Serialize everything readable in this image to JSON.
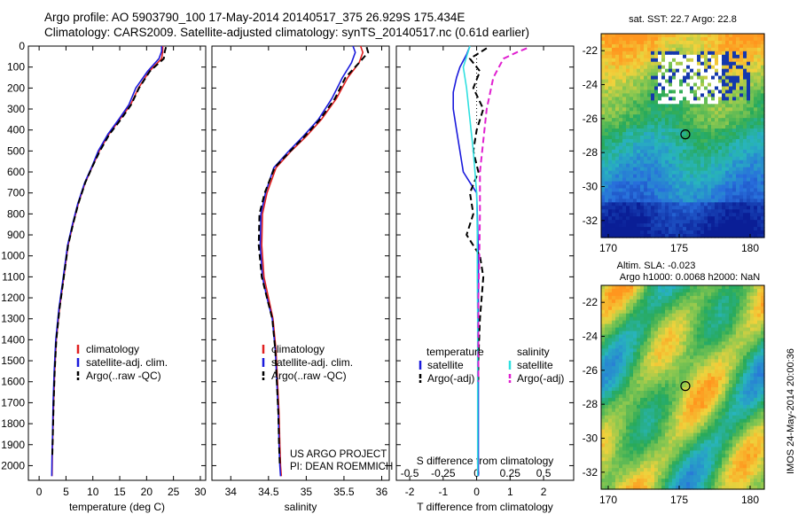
{
  "header": {
    "line1": "Argo profile: AO 5903790_100 17-May-2014 20140517_375 26.929S 175.434E",
    "line2": "Climatology: CARS2009. Satellite-adjusted climatology: synTS_20140517.nc (0.61d earlier)"
  },
  "footer_stamp": "IMOS 24-May-2014 20:00:36",
  "project_note": {
    "line1": "US ARGO PROJECT",
    "line2": "PI: DEAN ROEMMICH"
  },
  "colors": {
    "climatology": "#e02020",
    "satellite": "#1a1adc",
    "argo": "#000000",
    "sat_cyan": "#30e0e0",
    "argo_magenta": "#e020d0"
  },
  "chart_data": [
    {
      "type": "line",
      "xlabel": "temperature (deg C)",
      "ylabel": "",
      "xlim": [
        -2,
        31
      ],
      "ylim": [
        2070,
        0
      ],
      "xticks": [
        0,
        5,
        10,
        15,
        20,
        25,
        30
      ],
      "yticks": [
        0,
        100,
        200,
        300,
        400,
        500,
        600,
        700,
        800,
        900,
        1000,
        1100,
        1200,
        1300,
        1400,
        1500,
        1600,
        1700,
        1800,
        1900,
        2000
      ],
      "legend": [
        "climatology",
        "satellite-adj. clim.",
        "Argo(..raw -QC)"
      ],
      "legend_position": "bottom-center",
      "series": [
        {
          "name": "climatology",
          "color": "#e02020",
          "style": "solid",
          "x": [
            23.0,
            23.0,
            22.8,
            20.5,
            18.5,
            17.0,
            15.0,
            13.0,
            11.2,
            10.0,
            8.6,
            7.3,
            6.3,
            5.4,
            4.6,
            3.8,
            3.2,
            2.9,
            2.7,
            2.55,
            2.45,
            2.4
          ],
          "y": [
            0,
            25,
            60,
            120,
            200,
            280,
            350,
            420,
            500,
            570,
            650,
            750,
            850,
            950,
            1100,
            1250,
            1400,
            1550,
            1700,
            1850,
            1950,
            2050
          ]
        },
        {
          "name": "satellite-adj. clim.",
          "color": "#1a1adc",
          "style": "solid",
          "x": [
            22.8,
            22.8,
            22.3,
            20.2,
            18.0,
            16.7,
            14.8,
            12.8,
            11.0,
            9.9,
            8.5,
            7.2,
            6.2,
            5.3,
            4.5,
            3.7,
            3.1,
            2.8,
            2.6,
            2.5,
            2.4,
            2.35
          ],
          "y": [
            0,
            25,
            60,
            120,
            200,
            280,
            350,
            420,
            500,
            570,
            650,
            750,
            850,
            950,
            1100,
            1250,
            1400,
            1550,
            1700,
            1850,
            1950,
            2050
          ]
        },
        {
          "name": "Argo(..raw -QC)",
          "color": "#000000",
          "style": "dashed",
          "x": [
            23.6,
            23.4,
            23.2,
            20.6,
            18.6,
            17.1,
            15.2,
            13.1,
            11.3,
            10.0,
            8.6,
            7.3,
            6.3,
            5.4,
            4.6,
            3.8,
            3.2,
            2.9,
            2.7,
            2.55,
            2.45
          ],
          "y": [
            5,
            25,
            60,
            120,
            200,
            280,
            350,
            420,
            500,
            570,
            650,
            750,
            850,
            950,
            1100,
            1250,
            1400,
            1550,
            1700,
            1850,
            1950
          ]
        }
      ]
    },
    {
      "type": "line",
      "xlabel": "salinity",
      "ylabel": "",
      "xlim": [
        33.75,
        36.1
      ],
      "ylim": [
        2070,
        0
      ],
      "xticks": [
        34,
        34.5,
        35,
        35.5,
        36
      ],
      "xticklabels": [
        "34",
        "34.5",
        "35",
        "35.5",
        "36"
      ],
      "legend": [
        "climatology",
        "satellite-adj. clim.",
        "Argo(..raw -QC)"
      ],
      "legend_position": "bottom-center",
      "series": [
        {
          "name": "climatology",
          "color": "#e02020",
          "style": "solid",
          "x": [
            35.72,
            35.75,
            35.7,
            35.55,
            35.4,
            35.2,
            35.0,
            34.8,
            34.6,
            34.48,
            34.42,
            34.41,
            34.44,
            34.5,
            34.56,
            34.6,
            34.62,
            34.64,
            34.65,
            34.66,
            34.67
          ],
          "y": [
            0,
            30,
            80,
            150,
            250,
            350,
            430,
            500,
            580,
            700,
            800,
            950,
            1100,
            1200,
            1300,
            1450,
            1600,
            1750,
            1900,
            2000,
            2050
          ]
        },
        {
          "name": "satellite-adj. clim.",
          "color": "#1a1adc",
          "style": "solid",
          "x": [
            35.62,
            35.65,
            35.6,
            35.48,
            35.34,
            35.16,
            34.96,
            34.77,
            34.57,
            34.46,
            34.4,
            34.39,
            34.42,
            34.48,
            34.55,
            34.59,
            34.61,
            34.63,
            34.64,
            34.65,
            34.66
          ],
          "y": [
            0,
            30,
            80,
            150,
            250,
            350,
            430,
            500,
            580,
            700,
            800,
            950,
            1100,
            1200,
            1300,
            1450,
            1600,
            1750,
            1900,
            2000,
            2050
          ]
        },
        {
          "name": "Argo(..raw -QC)",
          "color": "#000000",
          "style": "dashed",
          "x": [
            35.8,
            35.82,
            35.7,
            35.52,
            35.38,
            35.18,
            34.98,
            34.79,
            34.58,
            34.45,
            34.38,
            34.37,
            34.41,
            34.48,
            34.55,
            34.59,
            34.61,
            34.63,
            34.64,
            34.65
          ],
          "y": [
            5,
            30,
            80,
            150,
            250,
            350,
            430,
            500,
            580,
            700,
            800,
            950,
            1100,
            1200,
            1300,
            1450,
            1600,
            1750,
            1900,
            2000
          ]
        }
      ]
    },
    {
      "type": "line",
      "xlabel": "T difference from climatology",
      "xlabel_top": "S difference from climatology",
      "xlim": [
        -2.4,
        2.9
      ],
      "ylim": [
        2070,
        0
      ],
      "xticks": [
        -2,
        -1,
        0,
        1,
        2
      ],
      "xticks_top": [
        -0.5,
        -0.25,
        0,
        0.25,
        0.5
      ],
      "xticklabels_top": [
        "-0.5",
        "-0.25",
        "0",
        "0.25",
        "0.5"
      ],
      "legend_title_left": "temperature",
      "legend_title_right": "salinity",
      "legend": [
        "satellite",
        "Argo(-adj)",
        "satellite",
        "Argo(-adj)"
      ],
      "legend_position": "bottom-center",
      "series": [
        {
          "name": "satellite",
          "group": "temperature",
          "color": "#1a1adc",
          "style": "solid",
          "x": [
            -0.2,
            -0.3,
            -0.5,
            -0.6,
            -0.7,
            -0.7,
            -0.6,
            -0.5,
            -0.4,
            -0.2,
            0.0,
            0.02,
            0.05,
            0.05,
            0.05,
            0.05,
            0.05,
            0.05
          ],
          "y": [
            0,
            40,
            100,
            150,
            220,
            300,
            400,
            500,
            600,
            650,
            700,
            800,
            1000,
            1200,
            1500,
            1700,
            1900,
            2050
          ]
        },
        {
          "name": "Argo(-adj)",
          "group": "temperature",
          "color": "#000000",
          "style": "dashed",
          "x": [
            0.3,
            -0.2,
            0.1,
            -0.1,
            0.2,
            0.0,
            -0.1,
            0.05,
            -0.2,
            -0.1,
            -0.3,
            0.1,
            0.2,
            0.15,
            0.1,
            0.05,
            0.05
          ],
          "y": [
            10,
            60,
            120,
            200,
            300,
            400,
            500,
            600,
            700,
            800,
            900,
            1000,
            1100,
            1200,
            1300,
            1500,
            1600
          ]
        },
        {
          "name": "satellite",
          "group": "salinity",
          "color": "#30e0e0",
          "style": "solid",
          "x": [
            -0.2,
            -0.4,
            -0.3,
            -0.2,
            -0.1,
            0.0,
            0.02,
            0.02,
            0.03,
            0.03,
            0.03,
            0.03,
            0.03
          ],
          "y": [
            0,
            100,
            200,
            350,
            500,
            700,
            900,
            1100,
            1300,
            1500,
            1700,
            1900,
            2050
          ]
        },
        {
          "name": "Argo(-adj)",
          "group": "salinity",
          "color": "#e020d0",
          "style": "dashed",
          "x": [
            1.5,
            1.2,
            0.8,
            0.5,
            0.3,
            0.2,
            0.1,
            0.1,
            0.08,
            0.05,
            0.05,
            0.05
          ],
          "y": [
            10,
            30,
            60,
            150,
            300,
            450,
            600,
            800,
            1000,
            1200,
            1400,
            1600
          ]
        }
      ]
    },
    {
      "type": "heatmap",
      "title": "sat. SST: 22.7  Argo: 22.8",
      "xlim": [
        169.5,
        181
      ],
      "ylim": [
        -33,
        -21
      ],
      "xticks": [
        170,
        175,
        180
      ],
      "yticks": [
        -32,
        -30,
        -28,
        -26,
        -24,
        -22
      ],
      "marker": {
        "x": 175.434,
        "y": -26.929
      }
    },
    {
      "type": "heatmap",
      "title": "Altim. SLA: -0.023",
      "subtitle": "Argo h1000: 0.0068 h2000: NaN",
      "xlim": [
        169.5,
        181
      ],
      "ylim": [
        -33,
        -21
      ],
      "xticks": [
        170,
        175,
        180
      ],
      "yticks": [
        -32,
        -30,
        -28,
        -26,
        -24,
        -22
      ],
      "marker": {
        "x": 175.434,
        "y": -26.929
      }
    }
  ]
}
